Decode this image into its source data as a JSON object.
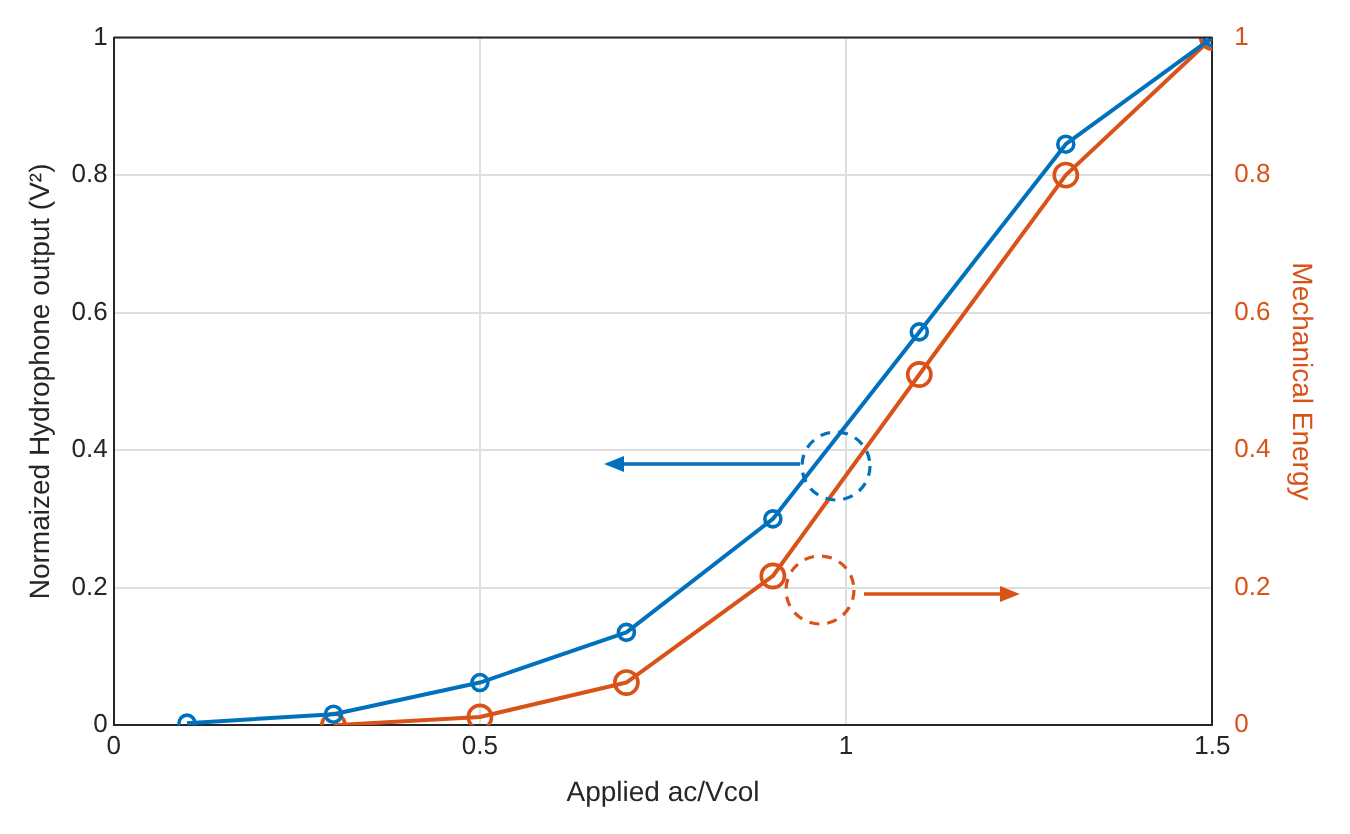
{
  "chart_data": {
    "type": "line",
    "xlabel": "Applied ac/Vcol",
    "ylabel": "Normaized Hydrophone output (V²)",
    "y2label": "Mechanical Energy",
    "xlim": [
      0,
      1.5
    ],
    "xticks": [
      0,
      0.5,
      1,
      1.5
    ],
    "ylim": [
      0,
      1
    ],
    "yticks": [
      0,
      0.2,
      0.4,
      0.6,
      0.8,
      1
    ],
    "y2lim": [
      0,
      1
    ],
    "y2ticks": [
      0,
      0.2,
      0.4,
      0.6,
      0.8,
      1
    ],
    "grid": true,
    "marker": "circle",
    "line_style": "solid",
    "series": [
      {
        "color": "#0072bd",
        "x": [
          0.1,
          0.3,
          0.5,
          0.7,
          0.9,
          1.1,
          1.3,
          1.5
        ],
        "values": [
          0.003,
          0.016,
          0.062,
          0.135,
          0.3,
          0.572,
          0.845,
          1.0
        ]
      },
      {
        "color": "#d95319",
        "axis": "y2",
        "x": [
          0.3,
          0.5,
          0.7,
          0.9,
          1.1,
          1.3,
          1.5
        ],
        "values": [
          0.0,
          0.012,
          0.062,
          0.217,
          0.51,
          0.8,
          1.0
        ]
      }
    ]
  }
}
